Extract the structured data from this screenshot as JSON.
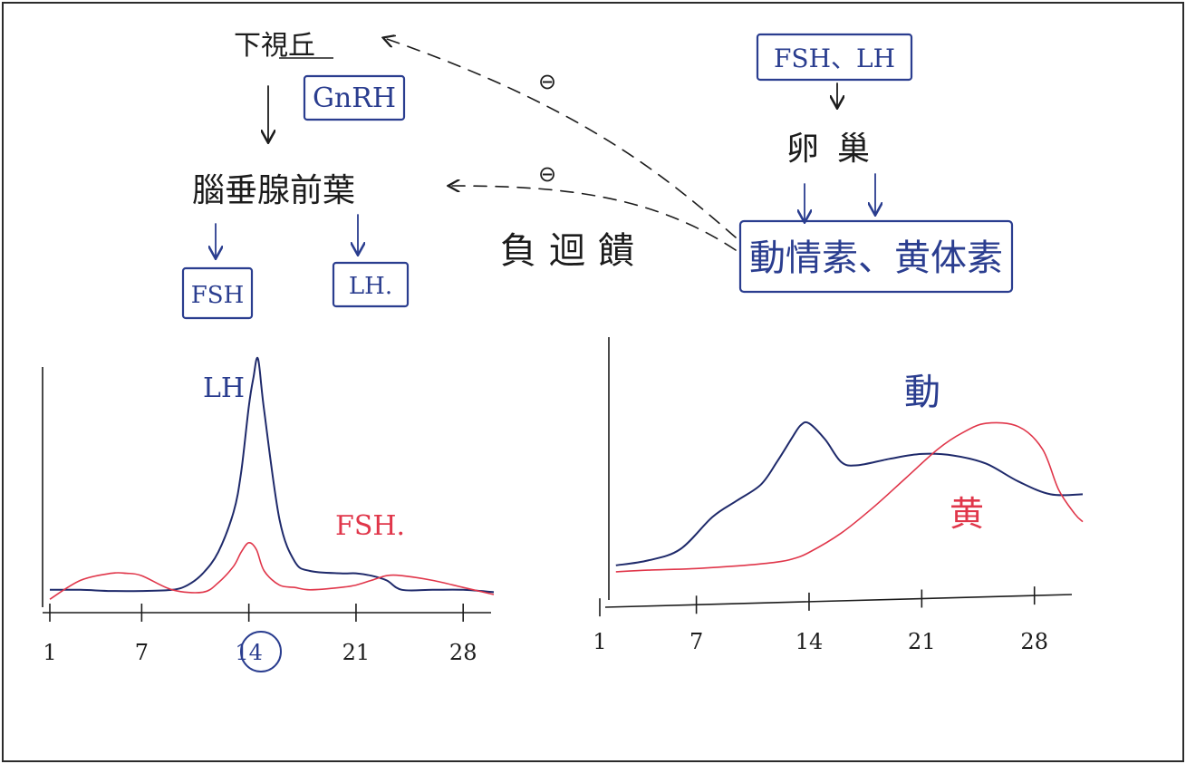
{
  "diagram": {
    "hypothalamus": "下視丘",
    "gnrh": "GnRH",
    "anterior_pituitary": "腦垂腺前葉",
    "fsh_box": "FSH",
    "lh_box": "LH.",
    "fsh_lh_box": "FSH、LH",
    "ovary": "卵巢",
    "hormones_box": "動情素、黄体素",
    "negative_feedback": "負迴饋",
    "inhibit_top": "⊖",
    "inhibit_mid": "⊖",
    "colors": {
      "ink": "#1c1c1c",
      "blue": "#2a3d8f",
      "navy": "#1f2a6b",
      "red": "#e0364a"
    }
  },
  "chart_data": [
    {
      "type": "line",
      "xlim": [
        1,
        30
      ],
      "ylim": [
        0,
        100
      ],
      "x_ticks": [
        "1",
        "7",
        "14",
        "21",
        "28"
      ],
      "x_tick_values": [
        1,
        7,
        14,
        21,
        28
      ],
      "highlight_tick": "14",
      "series": [
        {
          "name": "LH",
          "color": "#1f2a6b",
          "x": [
            1,
            3,
            5,
            7,
            9,
            10,
            11,
            12,
            13,
            13.5,
            14,
            14.3,
            14.6,
            15,
            16,
            17,
            18,
            20,
            21,
            22,
            23,
            24,
            26,
            28,
            30
          ],
          "y": [
            2,
            2,
            1.5,
            1.5,
            2,
            4,
            9,
            18,
            35,
            52,
            80,
            92,
            100,
            78,
            32,
            14,
            10,
            9,
            9,
            8,
            6,
            2,
            2,
            2,
            1
          ]
        },
        {
          "name": "FSH.",
          "color": "#e0364a",
          "x": [
            1,
            3,
            5,
            6,
            7,
            9,
            11,
            12,
            13,
            13.5,
            14,
            14.5,
            15,
            16,
            17,
            18,
            20,
            21,
            22,
            23,
            24,
            26,
            28,
            30
          ],
          "y": [
            -2,
            6,
            9,
            9,
            8,
            2,
            1,
            5,
            12,
            18,
            22,
            19,
            10,
            4,
            3,
            2,
            3,
            4,
            6,
            8,
            8,
            6,
            3,
            0
          ]
        }
      ]
    },
    {
      "type": "line",
      "xlim": [
        1,
        31
      ],
      "ylim": [
        0,
        100
      ],
      "x_ticks": [
        "1",
        "7",
        "14",
        "21",
        "28"
      ],
      "x_tick_values": [
        1,
        7,
        14,
        21,
        28
      ],
      "series": [
        {
          "name": "動",
          "color": "#1f2a6b",
          "x": [
            2,
            4,
            6,
            8,
            9.5,
            11,
            12,
            13,
            13.5,
            14,
            15,
            16,
            17,
            19,
            21,
            23,
            25,
            27,
            29,
            31
          ],
          "y": [
            8,
            11,
            18,
            38,
            48,
            58,
            72,
            88,
            95,
            96,
            86,
            72,
            70,
            74,
            77,
            76,
            71,
            60,
            52,
            52
          ]
        },
        {
          "name": "黄",
          "color": "#e0364a",
          "x": [
            2,
            4,
            7,
            10,
            12,
            13,
            14,
            16,
            18,
            20,
            22,
            23.5,
            25,
            27,
            28.5,
            29.5,
            30.5,
            31
          ],
          "y": [
            4,
            5,
            6,
            8,
            10,
            12,
            16,
            28,
            44,
            62,
            80,
            90,
            96,
            94,
            80,
            55,
            40,
            35
          ]
        }
      ]
    }
  ]
}
